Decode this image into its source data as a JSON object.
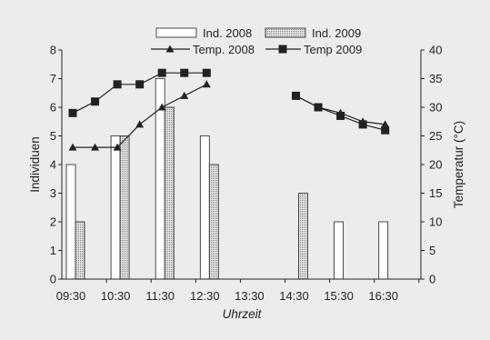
{
  "chart_data": {
    "type": "bar",
    "xlabel": "Uhrzeit",
    "ylabel_left": "Individuen",
    "ylabel_right": "Temperatur (°C)",
    "categories": [
      "09:30",
      "10:30",
      "11:30",
      "12:30",
      "13:30",
      "14:30",
      "15:30",
      "16:30"
    ],
    "left_ylim": [
      0,
      8
    ],
    "left_ticks": [
      "0",
      "1",
      "2",
      "3",
      "4",
      "5",
      "6",
      "7",
      "8"
    ],
    "right_ylim": [
      0,
      40
    ],
    "right_ticks": [
      "0",
      "5",
      "10",
      "15",
      "20",
      "25",
      "30",
      "35",
      "40"
    ],
    "bar_series": [
      {
        "name": "Ind. 2008",
        "fill": "#ffffff",
        "pattern": "none",
        "values": [
          4,
          5,
          7,
          5,
          null,
          null,
          2,
          2
        ]
      },
      {
        "name": "Ind. 2009",
        "fill": "#d0d0d0",
        "pattern": "dotted-vertical",
        "values": [
          2,
          5,
          6,
          4,
          null,
          3,
          null,
          null
        ]
      }
    ],
    "line_series": [
      {
        "name": "Temp. 2008",
        "marker": "triangle",
        "axis": "right",
        "points": [
          [
            "09:30",
            23
          ],
          [
            "10:00",
            23
          ],
          [
            "10:30",
            23
          ],
          [
            "11:00",
            27
          ],
          [
            "11:30",
            30
          ],
          [
            "12:00",
            32
          ],
          [
            "12:30",
            34
          ],
          null,
          [
            "14:30",
            32
          ],
          [
            "15:00",
            30
          ],
          [
            "15:30",
            29
          ],
          [
            "16:00",
            27.5
          ],
          [
            "16:30",
            27
          ]
        ]
      },
      {
        "name": "Temp 2009",
        "marker": "square",
        "axis": "right",
        "points": [
          [
            "09:30",
            29
          ],
          [
            "10:00",
            31
          ],
          [
            "10:30",
            34
          ],
          [
            "11:00",
            34
          ],
          [
            "11:30",
            36
          ],
          [
            "12:00",
            36
          ],
          [
            "12:30",
            36
          ],
          null,
          [
            "14:30",
            32
          ],
          [
            "15:00",
            30
          ],
          [
            "15:30",
            28.5
          ],
          [
            "16:00",
            27
          ],
          [
            "16:30",
            26
          ]
        ]
      }
    ],
    "legend": [
      "Ind. 2008",
      "Ind. 2009",
      "Temp. 2008",
      "Temp 2009"
    ],
    "legend_position": "top",
    "grid": false,
    "colors": {
      "background": "#ececec",
      "axis": "#222222",
      "line": "#222222",
      "bar_2009": "#d0d0d0"
    }
  }
}
